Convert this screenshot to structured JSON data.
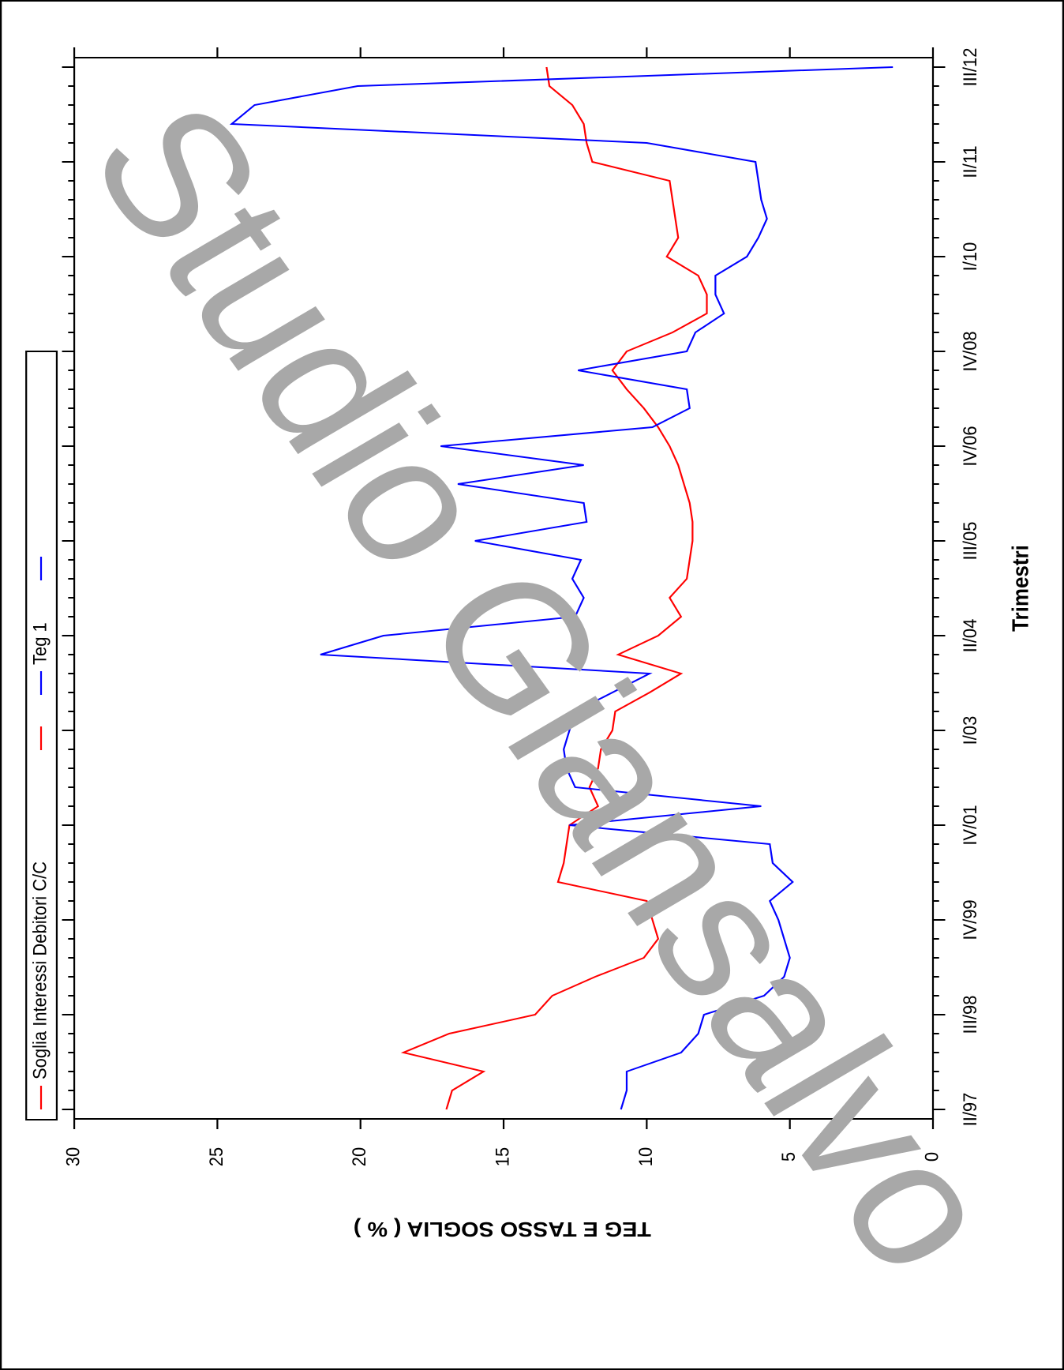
{
  "chart_data": {
    "type": "line",
    "x_label": "Trimestri",
    "y_label": "TEG E TASSO SOGLIA ( % )",
    "watermark": "Studio Giansalvo",
    "categories": [
      "II/97",
      null,
      null,
      null,
      null,
      "III/98",
      null,
      null,
      null,
      null,
      "IV/99",
      null,
      null,
      null,
      null,
      "IV/01",
      null,
      null,
      null,
      null,
      "I/03",
      null,
      null,
      null,
      null,
      "II/04",
      null,
      null,
      null,
      null,
      "III/05",
      null,
      null,
      null,
      null,
      "IV/06",
      null,
      null,
      null,
      null,
      "IV/08",
      null,
      null,
      null,
      null,
      "I/10",
      null,
      null,
      null,
      null,
      "II/11",
      null,
      null,
      null,
      null,
      "III/12"
    ],
    "ylim": [
      0,
      30
    ],
    "yticks": [
      0,
      5,
      10,
      15,
      20,
      25,
      30
    ],
    "series": [
      {
        "name": "Soglia Interessi Debitori C/C",
        "color": "#ff0000",
        "values": [
          17.0,
          16.8,
          15.7,
          18.5,
          16.9,
          13.9,
          13.3,
          11.8,
          10.1,
          9.6,
          9.8,
          10.0,
          13.1,
          12.9,
          12.8,
          12.7,
          11.7,
          12.0,
          11.7,
          11.6,
          11.2,
          11.1,
          9.9,
          8.8,
          11.0,
          9.6,
          8.8,
          9.2,
          8.6,
          8.5,
          8.4,
          8.4,
          8.5,
          8.7,
          8.9,
          9.2,
          9.6,
          10.1,
          10.7,
          11.2,
          10.7,
          9.1,
          7.9,
          7.9,
          8.2,
          9.3,
          8.9,
          9.0,
          9.1,
          9.2,
          11.9,
          12.1,
          12.2,
          12.6,
          13.4,
          13.5
        ]
      },
      {
        "name": "Teg 1",
        "color": "#0000ff",
        "values": [
          10.9,
          10.7,
          10.7,
          8.8,
          8.2,
          8.0,
          5.9,
          5.2,
          5.0,
          5.2,
          5.4,
          5.7,
          4.9,
          5.6,
          5.7,
          12.7,
          6.0,
          12.5,
          12.8,
          12.9,
          12.7,
          12.5,
          11.2,
          9.9,
          21.4,
          19.2,
          12.5,
          12.2,
          12.6,
          12.3,
          16.0,
          12.1,
          12.2,
          16.6,
          12.2,
          17.2,
          9.8,
          8.5,
          8.6,
          12.4,
          8.6,
          8.3,
          7.3,
          7.6,
          7.6,
          6.5,
          6.1,
          5.8,
          6.0,
          6.1,
          6.2,
          10.0,
          24.5,
          23.7,
          20.1,
          1.4
        ]
      }
    ]
  }
}
